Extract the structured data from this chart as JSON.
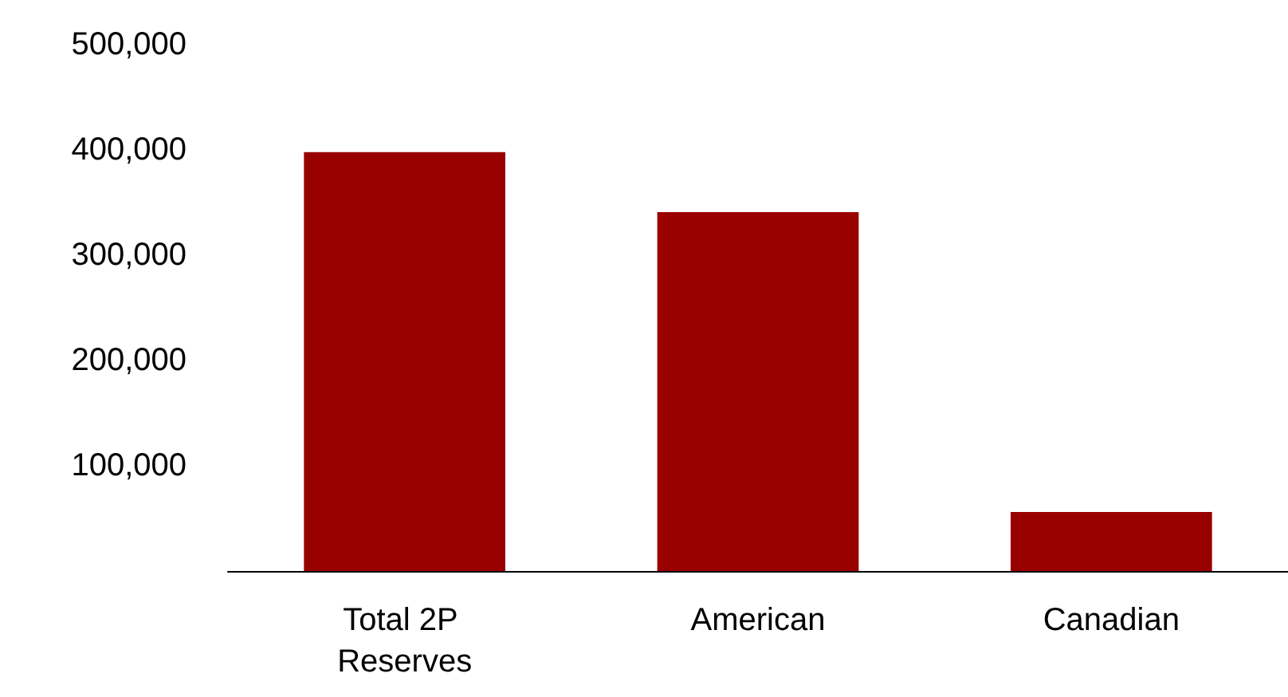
{
  "chart_data": {
    "type": "bar",
    "categories": [
      "Total 2P Reserves",
      "American",
      "Canadian"
    ],
    "values": [
      398000,
      341000,
      56000
    ],
    "color": "#990000",
    "ylim": [
      0,
      500000
    ],
    "yticks": [
      {
        "value": 100000,
        "label": "100,000"
      },
      {
        "value": 200000,
        "label": "200,000"
      },
      {
        "value": 300000,
        "label": "300,000"
      },
      {
        "value": 400000,
        "label": "400,000"
      },
      {
        "value": 500000,
        "label": "500,000"
      }
    ],
    "grid": false
  }
}
